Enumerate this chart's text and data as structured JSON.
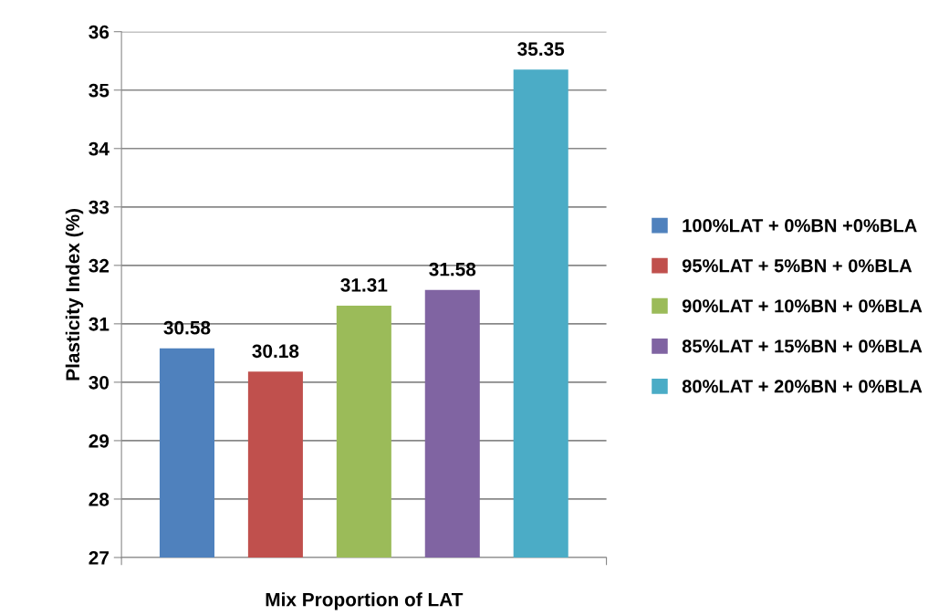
{
  "chart_data": {
    "type": "bar",
    "xlabel": "Mix Proportion of LAT",
    "ylabel": "Plasticity Index (%)",
    "categories": [
      null
    ],
    "series": [
      {
        "name": "100%LAT + 0%BN +0%BLA",
        "color": "#4f81bd",
        "values": [
          30.58
        ]
      },
      {
        "name": "95%LAT + 5%BN + 0%BLA",
        "color": "#c0504d",
        "values": [
          30.18
        ]
      },
      {
        "name": "90%LAT + 10%BN + 0%BLA",
        "color": "#9bbb59",
        "values": [
          31.31
        ]
      },
      {
        "name": "85%LAT + 15%BN + 0%BLA",
        "color": "#8064a2",
        "values": [
          31.58
        ]
      },
      {
        "name": "80%LAT + 20%BN + 0%BLA",
        "color": "#4bacc6",
        "values": [
          35.35
        ]
      }
    ],
    "ylim": [
      27,
      36
    ],
    "yticks": [
      27,
      28,
      29,
      30,
      31,
      32,
      33,
      34,
      35,
      36
    ],
    "grid": "y",
    "legend": "right",
    "data_labels": true
  }
}
